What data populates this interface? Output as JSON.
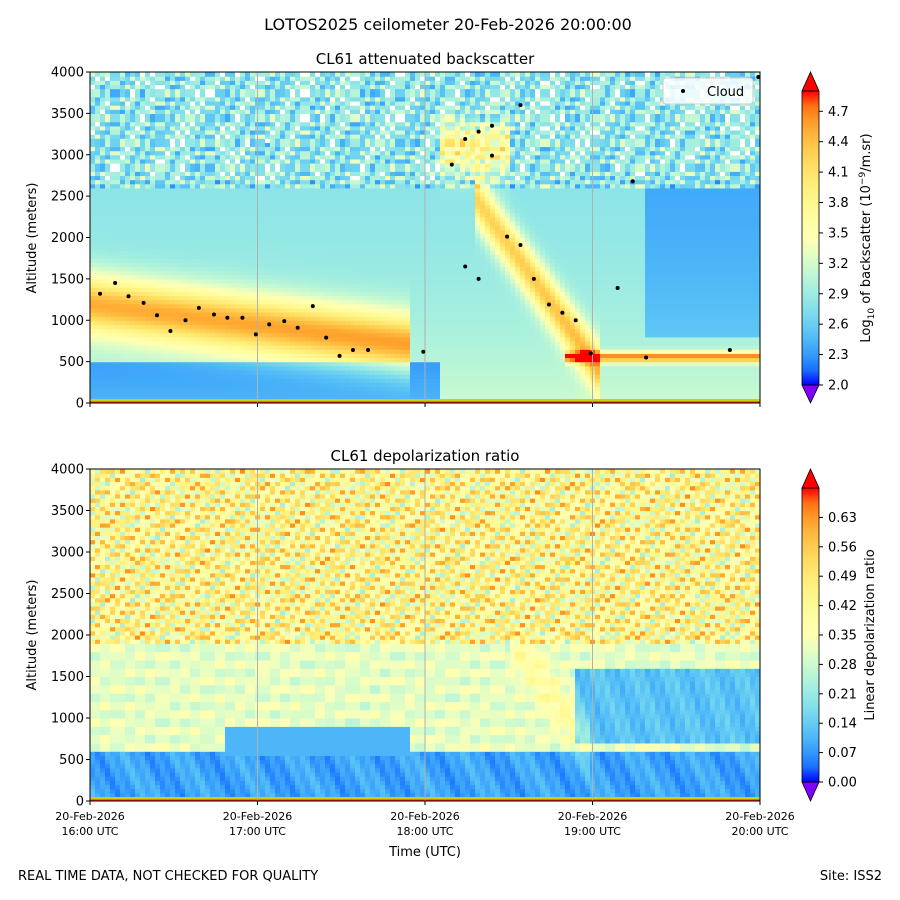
{
  "figure": {
    "suptitle": "LOTOS2025 ceilometer 20-Feb-2026 20:00:00",
    "footer_left": "REAL TIME DATA, NOT CHECKED FOR QUALITY",
    "footer_right": "Site: ISS2",
    "colors": {
      "cloud_marker": "#000000",
      "gridline": "#b0b0b0",
      "ground_band": "#d0d000"
    }
  },
  "chart_data": [
    {
      "type": "heatmap",
      "title": "CL61 attenuated backscatter",
      "ylabel": "Altitude (meters)",
      "xlabel": "",
      "ylim": [
        0,
        4000
      ],
      "yticks": [
        0,
        500,
        1000,
        1500,
        2000,
        2500,
        3000,
        3500,
        4000
      ],
      "x_range_hours_utc": [
        16,
        20
      ],
      "xticks_hours": [
        16,
        17,
        18,
        19,
        20
      ],
      "colorbar": {
        "label_prefix": "Log",
        "label_sub": "10",
        "label_mid": " of backscatter (10",
        "label_sup": "−9",
        "label_suffix": "/m.sr)",
        "range": [
          2.0,
          4.9
        ],
        "ticks": [
          "2.0",
          "2.3",
          "2.6",
          "2.9",
          "3.2",
          "3.5",
          "3.8",
          "4.1",
          "4.4",
          "4.7"
        ],
        "colormap": "rainbow"
      },
      "legend": {
        "entries": [
          "Cloud"
        ],
        "position": "top-right"
      },
      "cloud_points": [
        [
          16.06,
          1320
        ],
        [
          16.15,
          1450
        ],
        [
          16.23,
          1290
        ],
        [
          16.32,
          1210
        ],
        [
          16.4,
          1060
        ],
        [
          16.48,
          870
        ],
        [
          16.57,
          1000
        ],
        [
          16.65,
          1150
        ],
        [
          16.74,
          1070
        ],
        [
          16.82,
          1030
        ],
        [
          16.91,
          1030
        ],
        [
          16.99,
          830
        ],
        [
          17.07,
          950
        ],
        [
          17.16,
          990
        ],
        [
          17.24,
          910
        ],
        [
          17.33,
          1170
        ],
        [
          17.41,
          790
        ],
        [
          17.49,
          570
        ],
        [
          17.57,
          640
        ],
        [
          17.66,
          640
        ],
        [
          17.99,
          620
        ],
        [
          18.16,
          2880
        ],
        [
          18.24,
          3190
        ],
        [
          18.24,
          1650
        ],
        [
          18.32,
          3280
        ],
        [
          18.32,
          1500
        ],
        [
          18.4,
          3350
        ],
        [
          18.4,
          2990
        ],
        [
          18.49,
          2010
        ],
        [
          18.57,
          1910
        ],
        [
          18.57,
          3600
        ],
        [
          18.65,
          1500
        ],
        [
          18.74,
          1190
        ],
        [
          18.82,
          1090
        ],
        [
          18.9,
          1000
        ],
        [
          18.99,
          600
        ],
        [
          19.15,
          1390
        ],
        [
          19.24,
          2680
        ],
        [
          19.32,
          550
        ],
        [
          19.82,
          640
        ],
        [
          19.99,
          3940
        ]
      ]
    },
    {
      "type": "heatmap",
      "title": "CL61 depolarization ratio",
      "ylabel": "Altitude (meters)",
      "xlabel": "Time (UTC)",
      "ylim": [
        0,
        4000
      ],
      "yticks": [
        0,
        500,
        1000,
        1500,
        2000,
        2500,
        3000,
        3500,
        4000
      ],
      "x_range_hours_utc": [
        16,
        20
      ],
      "xticks_hours": [
        16,
        17,
        18,
        19,
        20
      ],
      "xtick_labels": [
        [
          "20-Feb-2026",
          "16:00 UTC"
        ],
        [
          "20-Feb-2026",
          "17:00 UTC"
        ],
        [
          "20-Feb-2026",
          "18:00 UTC"
        ],
        [
          "20-Feb-2026",
          "19:00 UTC"
        ],
        [
          "20-Feb-2026",
          "20:00 UTC"
        ]
      ],
      "colorbar": {
        "label": "Linear depolarization ratio",
        "range": [
          0.0,
          0.7
        ],
        "ticks": [
          "0.00",
          "0.07",
          "0.14",
          "0.21",
          "0.28",
          "0.35",
          "0.42",
          "0.49",
          "0.56",
          "0.63"
        ],
        "colormap": "rainbow"
      }
    }
  ]
}
